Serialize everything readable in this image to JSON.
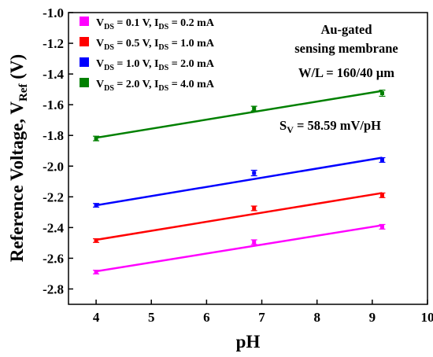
{
  "chart_data": {
    "type": "scatter",
    "title": "",
    "xlabel": "pH",
    "ylabel": {
      "main": "Reference Voltage, V",
      "sub": "Ref",
      "unit": " (V)"
    },
    "xlim": [
      3.5,
      10
    ],
    "ylim": [
      -2.9,
      -1.0
    ],
    "xticks": [
      4,
      5,
      6,
      7,
      8,
      9,
      10
    ],
    "yticks": [
      -1.0,
      -1.2,
      -1.4,
      -1.6,
      -1.8,
      -2.0,
      -2.2,
      -2.4,
      -2.6,
      -2.8
    ],
    "grid": false,
    "legend_position": "top-left",
    "series": [
      {
        "legend": {
          "v": "V",
          "vsub": "DS",
          "vval": " = 0.1 V, I",
          "isub": "DS",
          "ival": " = 0.2 mA"
        },
        "color": "#ff00ff",
        "points": [
          {
            "x": 4.0,
            "y": -2.69,
            "err": 0.012
          },
          {
            "x": 6.86,
            "y": -2.495,
            "err": 0.015
          },
          {
            "x": 9.18,
            "y": -2.395,
            "err": 0.015
          }
        ],
        "fit": {
          "x": [
            4.0,
            9.18
          ],
          "y": [
            -2.685,
            -2.385
          ]
        }
      },
      {
        "legend": {
          "v": "V",
          "vsub": "DS",
          "vval": " = 0.5 V, I",
          "isub": "DS",
          "ival": " = 1.0 mA"
        },
        "color": "#ff0000",
        "points": [
          {
            "x": 4.0,
            "y": -2.485,
            "err": 0.012
          },
          {
            "x": 6.86,
            "y": -2.275,
            "err": 0.015
          },
          {
            "x": 9.18,
            "y": -2.19,
            "err": 0.015
          }
        ],
        "fit": {
          "x": [
            4.0,
            9.18
          ],
          "y": [
            -2.48,
            -2.175
          ]
        }
      },
      {
        "legend": {
          "v": "V",
          "vsub": "DS",
          "vval": " = 1.0 V, I",
          "isub": "DS",
          "ival": " = 2.0 mA"
        },
        "color": "#0000ff",
        "points": [
          {
            "x": 4.0,
            "y": -2.255,
            "err": 0.012
          },
          {
            "x": 6.86,
            "y": -2.045,
            "err": 0.018
          },
          {
            "x": 9.18,
            "y": -1.96,
            "err": 0.015
          }
        ],
        "fit": {
          "x": [
            4.0,
            9.18
          ],
          "y": [
            -2.255,
            -1.945
          ]
        }
      },
      {
        "legend": {
          "v": "V",
          "vsub": "DS",
          "vval": " = 2.0 V, I",
          "isub": "DS",
          "ival": " = 4.0 mA"
        },
        "color": "#008000",
        "points": [
          {
            "x": 4.0,
            "y": -1.82,
            "err": 0.015
          },
          {
            "x": 6.86,
            "y": -1.625,
            "err": 0.015
          },
          {
            "x": 9.18,
            "y": -1.525,
            "err": 0.02
          }
        ],
        "fit": {
          "x": [
            4.0,
            9.18
          ],
          "y": [
            -1.815,
            -1.51
          ]
        }
      }
    ],
    "annotations": {
      "line1": "Au-gated",
      "line2": "sensing membrane",
      "line3": "W/L = 160/40 µm",
      "sensitivity": {
        "s": "S",
        "sub": "V",
        "value": " = 58.59 mV/pH"
      }
    }
  }
}
